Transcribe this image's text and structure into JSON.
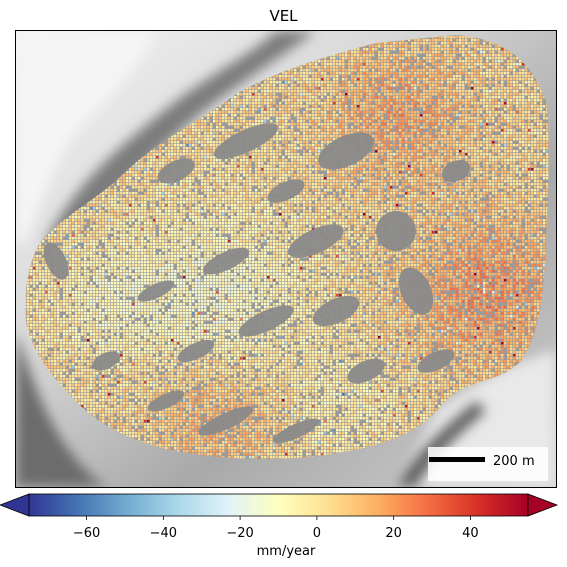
{
  "title": "VEL",
  "scalebar": {
    "label": "200 m"
  },
  "colorbar": {
    "label": "mm/year",
    "min": -75,
    "max": 55,
    "extend": "both",
    "cmap": "RdYlBu_r",
    "ticks": [
      -60,
      -40,
      -20,
      0,
      20,
      40
    ],
    "tick_labels": [
      "−60",
      "−40",
      "−20",
      "0",
      "20",
      "40"
    ],
    "colors": [
      "#313695",
      "#4575b4",
      "#74add1",
      "#abd9e9",
      "#e0f3f8",
      "#ffffbf",
      "#fee090",
      "#fdae61",
      "#f46d43",
      "#d73027",
      "#a50026"
    ]
  },
  "basemap": {
    "type": "hillshade",
    "colors": [
      "#f2f2f2",
      "#8e8e8e",
      "#4a4a4a"
    ]
  }
}
